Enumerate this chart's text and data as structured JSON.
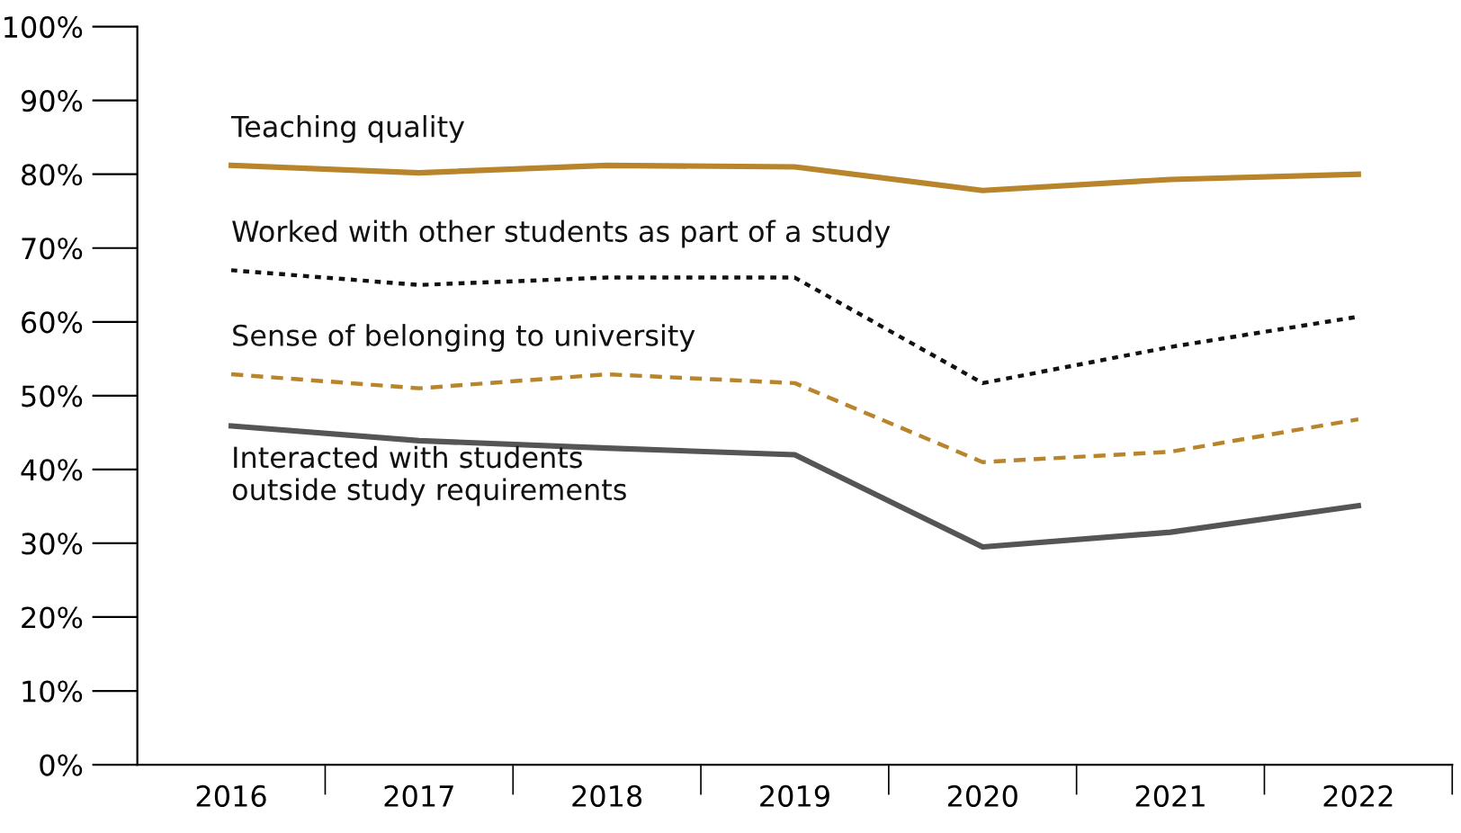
{
  "chart_data": {
    "type": "line",
    "categories": [
      "2016",
      "2017",
      "2018",
      "2019",
      "2020",
      "2021",
      "2022"
    ],
    "series": [
      {
        "name": "Teaching quality",
        "color": "#b8842c",
        "line_style": "solid",
        "values": [
          81.2,
          80.2,
          81.2,
          81,
          77.8,
          79.3,
          80
        ]
      },
      {
        "name": "Worked with other students as part of a study",
        "color": "#111111",
        "line_style": "dotted",
        "values": [
          67,
          65,
          66,
          66,
          51.7,
          56.6,
          60.7
        ]
      },
      {
        "name": "Sense of belonging to university",
        "color": "#b8842c",
        "line_style": "dashed",
        "values": [
          52.9,
          51,
          52.9,
          51.7,
          41,
          42.4,
          46.8
        ]
      },
      {
        "name": "Interacted with students\noutside study requirements",
        "color": "#555555",
        "line_style": "solid",
        "values": [
          45.9,
          43.9,
          42.9,
          42,
          29.5,
          31.5,
          35.1
        ]
      }
    ],
    "ylim": [
      0,
      100
    ],
    "yticks": [
      {
        "value": 0,
        "label": "0%"
      },
      {
        "value": 10,
        "label": "10%"
      },
      {
        "value": 20,
        "label": "20%"
      },
      {
        "value": 30,
        "label": "30%"
      },
      {
        "value": 40,
        "label": "40%"
      },
      {
        "value": 50,
        "label": "50%"
      },
      {
        "value": 60,
        "label": "60%"
      },
      {
        "value": 70,
        "label": "70%"
      },
      {
        "value": 80,
        "label": "80%"
      },
      {
        "value": 90,
        "label": "90%"
      },
      {
        "value": 100,
        "label": "100%"
      }
    ],
    "grid": false,
    "legend": false,
    "marker": "none"
  }
}
